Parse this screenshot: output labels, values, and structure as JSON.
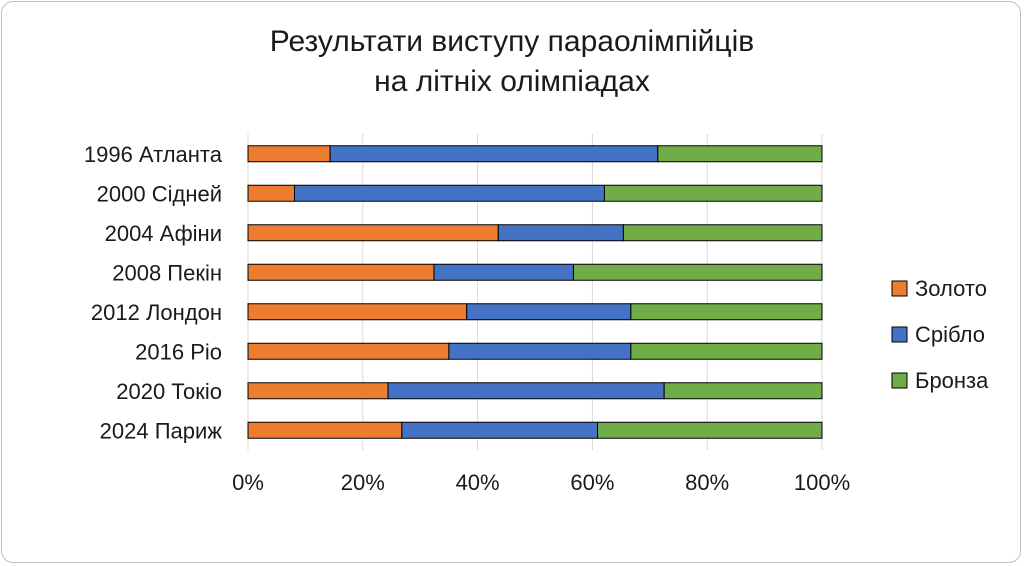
{
  "chart_data": {
    "type": "bar",
    "orientation": "horizontal",
    "stacked": "percent",
    "title": [
      "Результати виступу параолімпійців",
      "на літніх олімпіадах"
    ],
    "categories": [
      "1996 Атланта",
      "2000 Сідней",
      "2004 Афіни",
      "2008 Пекін",
      "2012 Лондон",
      "2016 Ріо",
      "2020 Токіо",
      "2024 Париж"
    ],
    "series": [
      {
        "name": "Золото",
        "color": "#ED7D31",
        "values": [
          14.3,
          8.1,
          43.6,
          32.4,
          38.1,
          35.0,
          24.4,
          26.8
        ]
      },
      {
        "name": "Срібло",
        "color": "#4472C4",
        "values": [
          57.1,
          54.0,
          21.8,
          24.3,
          28.6,
          31.7,
          48.1,
          34.1
        ]
      },
      {
        "name": "Бронза",
        "color": "#70AD47",
        "values": [
          28.6,
          37.9,
          34.6,
          43.3,
          33.3,
          33.3,
          27.5,
          39.1
        ]
      }
    ],
    "x_ticks": [
      "0%",
      "20%",
      "40%",
      "60%",
      "80%",
      "100%"
    ],
    "xlim": [
      0,
      100
    ],
    "grid": true,
    "legend_position": "right"
  }
}
